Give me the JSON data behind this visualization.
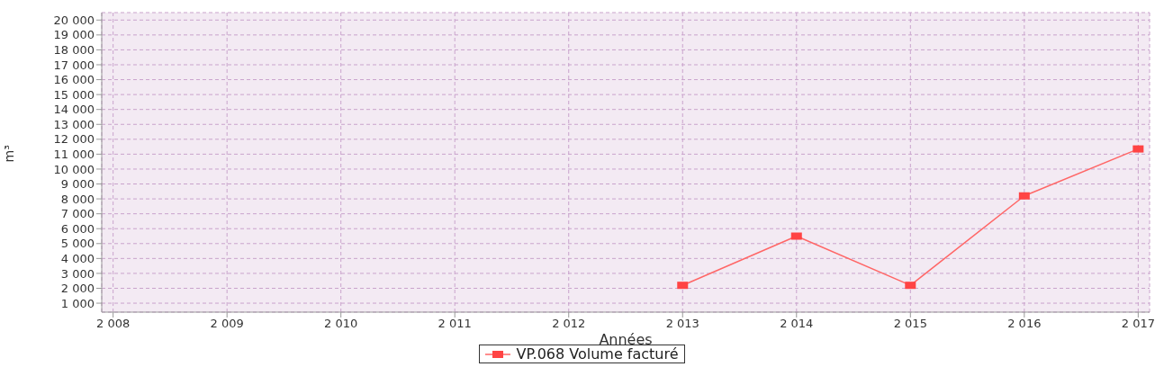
{
  "chart_data": {
    "type": "line",
    "xlabel": "Années",
    "ylabel": "m³",
    "x": [
      2013,
      2014,
      2015,
      2016,
      2017
    ],
    "series": [
      {
        "name": "VP.068 Volume facturé",
        "color": "#ff6666",
        "values": [
          2200,
          5500,
          2200,
          8200,
          11350
        ]
      }
    ],
    "xlim": [
      2007.9,
      2017.1
    ],
    "xticks": [
      {
        "value": 2008,
        "label": "2 008"
      },
      {
        "value": 2009,
        "label": "2 009"
      },
      {
        "value": 2010,
        "label": "2 010"
      },
      {
        "value": 2011,
        "label": "2 011"
      },
      {
        "value": 2012,
        "label": "2 012"
      },
      {
        "value": 2013,
        "label": "2 013"
      },
      {
        "value": 2014,
        "label": "2 014"
      },
      {
        "value": 2015,
        "label": "2 015"
      },
      {
        "value": 2016,
        "label": "2 016"
      },
      {
        "value": 2017,
        "label": "2 017"
      }
    ],
    "ylim": [
      400,
      20500
    ],
    "yticks": [
      {
        "value": 1000,
        "label": "1 000"
      },
      {
        "value": 2000,
        "label": "2 000"
      },
      {
        "value": 3000,
        "label": "3 000"
      },
      {
        "value": 4000,
        "label": "4 000"
      },
      {
        "value": 5000,
        "label": "5 000"
      },
      {
        "value": 6000,
        "label": "6 000"
      },
      {
        "value": 7000,
        "label": "7 000"
      },
      {
        "value": 8000,
        "label": "8 000"
      },
      {
        "value": 9000,
        "label": "9 000"
      },
      {
        "value": 10000,
        "label": "10 000"
      },
      {
        "value": 11000,
        "label": "11 000"
      },
      {
        "value": 12000,
        "label": "12 000"
      },
      {
        "value": 13000,
        "label": "13 000"
      },
      {
        "value": 14000,
        "label": "14 000"
      },
      {
        "value": 15000,
        "label": "15 000"
      },
      {
        "value": 16000,
        "label": "16 000"
      },
      {
        "value": 17000,
        "label": "17 000"
      },
      {
        "value": 18000,
        "label": "18 000"
      },
      {
        "value": 19000,
        "label": "19 000"
      },
      {
        "value": 20000,
        "label": "20 000"
      }
    ],
    "grid": true,
    "legend": "bottom",
    "marker": "square",
    "line_style": "solid"
  }
}
